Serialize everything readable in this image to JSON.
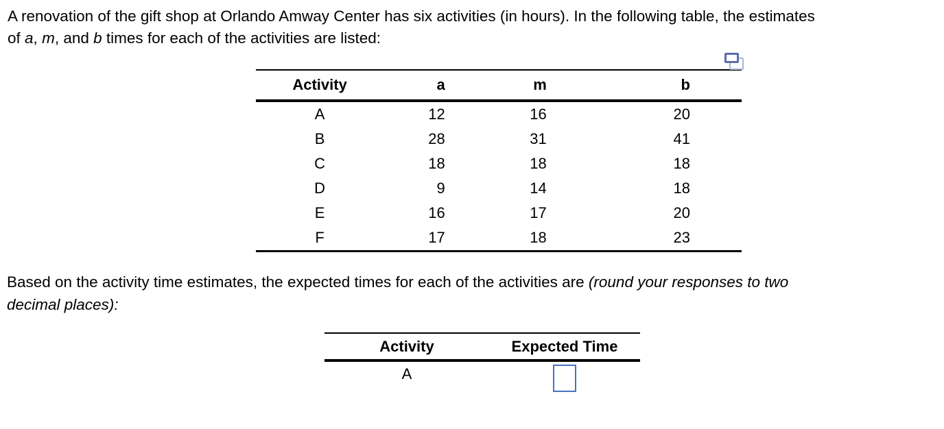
{
  "colors": {
    "background": "#ffffff",
    "text": "#000000",
    "table_rule": "#000000",
    "answer_box_border": "#4472c4",
    "copy_icon_front": "#5b6cac",
    "copy_icon_back": "#a9b3d8"
  },
  "icons": {
    "copy": "copy-layers-icon"
  },
  "paragraph1": {
    "line1": "A renovation of the gift shop at Orlando Amway Center has six activities (in hours). In the following table, the estimates",
    "line2_pre": "of ",
    "var_a": "a",
    "sep1": ", ",
    "var_m": "m",
    "sep2": ", and ",
    "var_b": "b",
    "line2_post": " times for each of the activities are listed:"
  },
  "table1": {
    "headers": [
      "Activity",
      "a",
      "m",
      "b"
    ],
    "rows": [
      [
        "A",
        "12",
        "16",
        "20"
      ],
      [
        "B",
        "28",
        "31",
        "41"
      ],
      [
        "C",
        "18",
        "18",
        "18"
      ],
      [
        "D",
        "9",
        "14",
        "18"
      ],
      [
        "E",
        "16",
        "17",
        "20"
      ],
      [
        "F",
        "17",
        "18",
        "23"
      ]
    ]
  },
  "paragraph2": {
    "line1_normal": "Based on the activity time estimates, the expected times for each of the activities are ",
    "line1_italic": "(round your responses to two",
    "line2_italic": "decimal places):"
  },
  "table2": {
    "headers": [
      "Activity",
      "Expected Time"
    ],
    "rows": [
      {
        "activity": "A",
        "expected_time": ""
      }
    ]
  }
}
